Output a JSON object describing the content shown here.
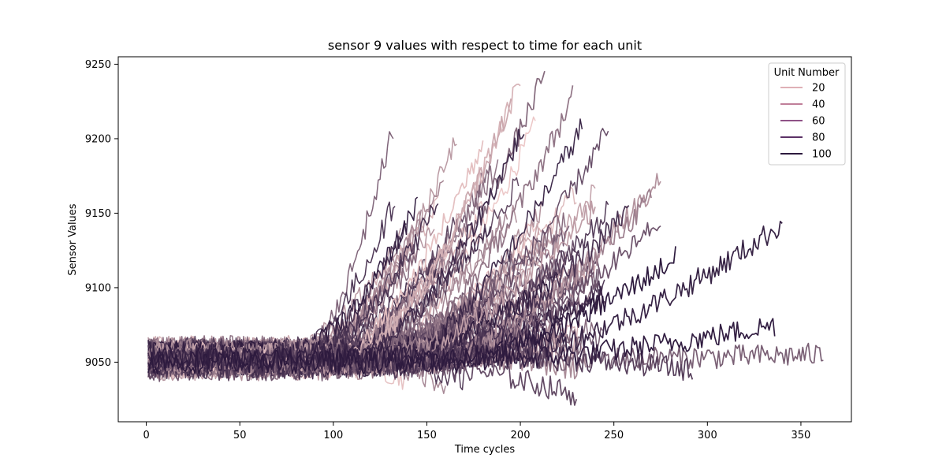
{
  "chart_data": {
    "type": "line",
    "title": "sensor 9 values with respect to time for each unit",
    "xlabel": "Time cycles",
    "ylabel": "Sensor Values",
    "xlim": [
      -15,
      377
    ],
    "ylim": [
      9010,
      9255
    ],
    "xticks": [
      0,
      50,
      100,
      150,
      200,
      250,
      300,
      350
    ],
    "yticks": [
      9050,
      9100,
      9150,
      9200,
      9250
    ],
    "grid": false,
    "legend": {
      "title": "Unit Number",
      "placement": "top-right",
      "entries": [
        {
          "label": "20",
          "color": "#dfb0b6"
        },
        {
          "label": "40",
          "color": "#c07f9a"
        },
        {
          "label": "60",
          "color": "#8f5287"
        },
        {
          "label": "80",
          "color": "#5c3267"
        },
        {
          "label": "100",
          "color": "#2d1a3e"
        }
      ]
    },
    "color_scale": {
      "low": "#ecc7c7",
      "high": "#2d1a3e"
    },
    "series_representative": [
      {
        "unit": 5,
        "length": 180,
        "start": 9052,
        "end": 9198
      },
      {
        "unit": 12,
        "length": 200,
        "start": 9055,
        "end": 9240
      },
      {
        "unit": 18,
        "length": 195,
        "start": 9050,
        "end": 9225
      },
      {
        "unit": 25,
        "length": 240,
        "start": 9055,
        "end": 9155
      },
      {
        "unit": 30,
        "length": 275,
        "start": 9050,
        "end": 9175
      },
      {
        "unit": 35,
        "length": 235,
        "start": 9058,
        "end": 9045
      },
      {
        "unit": 42,
        "length": 270,
        "start": 9052,
        "end": 9160
      },
      {
        "unit": 48,
        "length": 228,
        "start": 9050,
        "end": 9228
      },
      {
        "unit": 55,
        "length": 213,
        "start": 9055,
        "end": 9245
      },
      {
        "unit": 60,
        "length": 362,
        "start": 9052,
        "end": 9055
      },
      {
        "unit": 66,
        "length": 275,
        "start": 9050,
        "end": 9145
      },
      {
        "unit": 72,
        "length": 230,
        "start": 9052,
        "end": 9028
      },
      {
        "unit": 78,
        "length": 292,
        "start": 9055,
        "end": 9045
      },
      {
        "unit": 85,
        "length": 258,
        "start": 9050,
        "end": 9153
      },
      {
        "unit": 90,
        "length": 202,
        "start": 9052,
        "end": 9208
      },
      {
        "unit": 95,
        "length": 340,
        "start": 9055,
        "end": 9143
      },
      {
        "unit": 98,
        "length": 336,
        "start": 9052,
        "end": 9075
      },
      {
        "unit": 100,
        "length": 283,
        "start": 9050,
        "end": 9120
      }
    ]
  }
}
